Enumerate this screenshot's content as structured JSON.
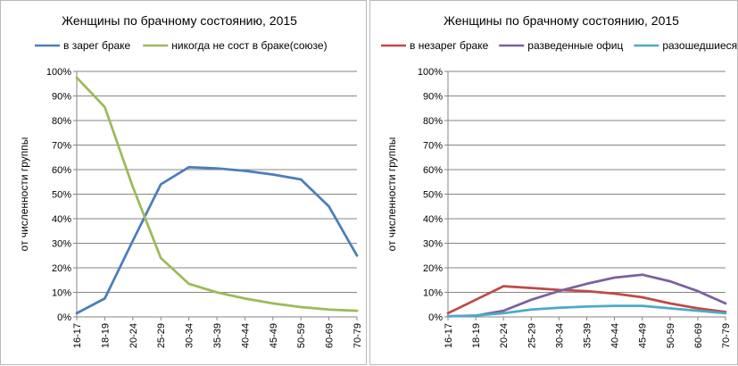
{
  "chart_data": [
    {
      "type": "line",
      "title": "Женщины по брачному состоянию, 2015",
      "xlabel": "",
      "ylabel": "от численности группы",
      "categories": [
        "16-17",
        "18-19",
        "20-24",
        "25-29",
        "30-34",
        "35-39",
        "40-44",
        "45-49",
        "50-59",
        "60-69",
        "70-79"
      ],
      "ylim": [
        0,
        100
      ],
      "y_ticks": [
        "0%",
        "10%",
        "20%",
        "30%",
        "40%",
        "50%",
        "60%",
        "70%",
        "80%",
        "90%",
        "100%"
      ],
      "grid": true,
      "legend_position": "top",
      "series": [
        {
          "name": "в зарег браке",
          "color": "#4a7ebb",
          "values": [
            1.5,
            7.5,
            31,
            54,
            61,
            60.5,
            59.5,
            58,
            56,
            45,
            25
          ]
        },
        {
          "name": "никогда не сост в браке(союзе)",
          "color": "#9bbb59",
          "values": [
            97.5,
            85.5,
            53,
            24,
            13.5,
            10,
            7.5,
            5.5,
            4,
            3,
            2.5
          ]
        }
      ]
    },
    {
      "type": "line",
      "title": "Женщины по брачному состоянию, 2015",
      "xlabel": "",
      "ylabel": "от численности группы",
      "categories": [
        "16-17",
        "18-19",
        "20-24",
        "25-29",
        "30-34",
        "35-39",
        "40-44",
        "45-49",
        "50-59",
        "60-69",
        "70-79"
      ],
      "ylim": [
        0,
        100
      ],
      "y_ticks": [
        "0%",
        "10%",
        "20%",
        "30%",
        "40%",
        "50%",
        "60%",
        "70%",
        "80%",
        "90%",
        "100%"
      ],
      "grid": true,
      "legend_position": "top",
      "series": [
        {
          "name": "в незарег браке",
          "color": "#be4b48",
          "values": [
            1.5,
            7,
            12.5,
            11.8,
            11,
            10.5,
            9.5,
            8,
            5.5,
            3.5,
            2
          ]
        },
        {
          "name": "разведенные офиц",
          "color": "#7d60a0",
          "values": [
            0.3,
            0.5,
            2.5,
            7,
            10.5,
            13.5,
            16,
            17.2,
            14.5,
            10.5,
            5.5
          ]
        },
        {
          "name": "разошедшиеся",
          "color": "#4bacc6",
          "values": [
            0.2,
            0.6,
            1.5,
            3,
            3.7,
            4.2,
            4.5,
            4.5,
            3.5,
            2.5,
            1.5
          ]
        }
      ]
    }
  ]
}
